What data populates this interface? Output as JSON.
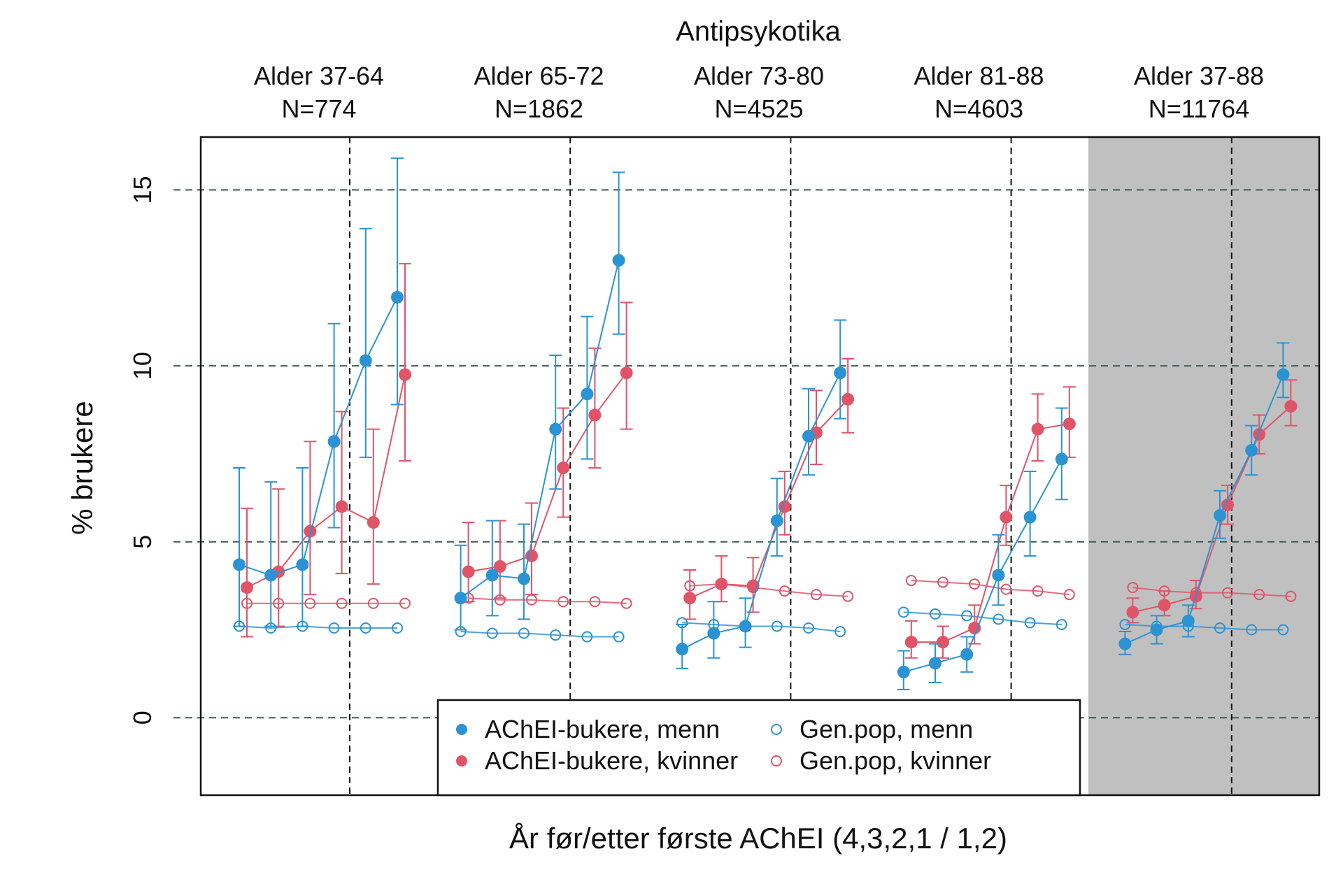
{
  "chart_data": {
    "type": "line",
    "title": "Antipsykotika",
    "xlabel": "År før/etter første AChEI (4,3,2,1 / 1,2)",
    "ylabel": "% brukere",
    "ylim": [
      -2.2,
      16.5
    ],
    "yticks": [
      0,
      5,
      10,
      15
    ],
    "ytick_labels": [
      "0",
      "5",
      "10",
      "15"
    ],
    "grid": true,
    "highlighted_panel": 4,
    "x_categories": [
      "4",
      "3",
      "2",
      "1",
      "1",
      "2"
    ],
    "legend_position": "bottom-center",
    "colors": {
      "menn": "#2b93d3",
      "kvinner": "#e05468",
      "highlight_bg": "#c0c0c0"
    },
    "legend": [
      {
        "label": "AChEI-bukere, menn",
        "series": "achei_menn"
      },
      {
        "label": "Gen.pop, menn",
        "series": "genpop_menn"
      },
      {
        "label": "AChEI-bukere, kvinner",
        "series": "achei_kvinner"
      },
      {
        "label": "Gen.pop, kvinner",
        "series": "genpop_kvinner"
      }
    ],
    "panels": [
      {
        "label": "Alder 37-64",
        "n": "N=774",
        "achei_menn": [
          4.35,
          4.05,
          4.35,
          7.85,
          10.15,
          11.95
        ],
        "achei_menn_ci": [
          [
            2.6,
            7.1
          ],
          [
            2.6,
            6.7
          ],
          [
            2.6,
            7.1
          ],
          [
            5.4,
            11.2
          ],
          [
            7.4,
            13.9
          ],
          [
            8.9,
            15.9
          ]
        ],
        "achei_kvinner": [
          3.7,
          4.15,
          5.3,
          6.0,
          5.55,
          9.75
        ],
        "achei_kvinner_ci": [
          [
            2.3,
            5.95
          ],
          [
            2.6,
            6.5
          ],
          [
            3.5,
            7.85
          ],
          [
            4.1,
            8.7
          ],
          [
            3.8,
            8.2
          ],
          [
            7.3,
            12.9
          ]
        ],
        "genpop_menn": [
          2.6,
          2.55,
          2.6,
          2.55,
          2.55,
          2.55
        ],
        "genpop_kvinner": [
          3.25,
          3.25,
          3.25,
          3.25,
          3.25,
          3.25
        ]
      },
      {
        "label": "Alder 65-72",
        "n": "N=1862",
        "achei_menn": [
          3.4,
          4.05,
          3.95,
          8.2,
          9.2,
          13.0
        ],
        "achei_menn_ci": [
          [
            2.5,
            4.9
          ],
          [
            2.9,
            5.6
          ],
          [
            2.8,
            5.5
          ],
          [
            6.5,
            10.3
          ],
          [
            7.35,
            11.4
          ],
          [
            10.9,
            15.5
          ]
        ],
        "achei_kvinner": [
          4.15,
          4.3,
          4.6,
          7.1,
          8.6,
          9.8
        ],
        "achei_kvinner_ci": [
          [
            3.3,
            5.55
          ],
          [
            3.4,
            5.6
          ],
          [
            3.5,
            6.1
          ],
          [
            5.7,
            8.8
          ],
          [
            7.1,
            10.5
          ],
          [
            8.2,
            11.8
          ]
        ],
        "genpop_menn": [
          2.45,
          2.4,
          2.4,
          2.35,
          2.3,
          2.3
        ],
        "genpop_kvinner": [
          3.4,
          3.35,
          3.35,
          3.3,
          3.3,
          3.25
        ]
      },
      {
        "label": "Alder 73-80",
        "n": "N=4525",
        "achei_menn": [
          1.95,
          2.4,
          2.6,
          5.6,
          8.0,
          9.8
        ],
        "achei_menn_ci": [
          [
            1.4,
            2.65
          ],
          [
            1.7,
            3.3
          ],
          [
            2.0,
            3.4
          ],
          [
            4.6,
            6.8
          ],
          [
            6.9,
            9.35
          ],
          [
            8.5,
            11.3
          ]
        ],
        "achei_kvinner": [
          3.4,
          3.8,
          3.75,
          6.0,
          8.1,
          9.05
        ],
        "achei_kvinner_ci": [
          [
            2.8,
            4.2
          ],
          [
            3.3,
            4.6
          ],
          [
            3.0,
            4.55
          ],
          [
            5.2,
            7.0
          ],
          [
            7.2,
            9.3
          ],
          [
            8.1,
            10.2
          ]
        ],
        "genpop_menn": [
          2.7,
          2.65,
          2.6,
          2.6,
          2.55,
          2.45
        ],
        "genpop_kvinner": [
          3.75,
          3.8,
          3.7,
          3.6,
          3.5,
          3.45
        ]
      },
      {
        "label": "Alder 81-88",
        "n": "N=4603",
        "achei_menn": [
          1.3,
          1.55,
          1.8,
          4.05,
          5.7,
          7.35
        ],
        "achei_menn_ci": [
          [
            0.8,
            1.9
          ],
          [
            1.0,
            2.1
          ],
          [
            1.3,
            2.3
          ],
          [
            3.2,
            5.2
          ],
          [
            4.6,
            7.0
          ],
          [
            6.2,
            8.8
          ]
        ],
        "achei_kvinner": [
          2.15,
          2.15,
          2.55,
          5.7,
          8.2,
          8.35
        ],
        "achei_kvinner_ci": [
          [
            1.7,
            2.75
          ],
          [
            1.7,
            2.6
          ],
          [
            2.1,
            3.2
          ],
          [
            4.9,
            6.6
          ],
          [
            7.3,
            9.2
          ],
          [
            7.4,
            9.4
          ]
        ],
        "genpop_menn": [
          3.0,
          2.95,
          2.9,
          2.8,
          2.7,
          2.65
        ],
        "genpop_kvinner": [
          3.9,
          3.85,
          3.8,
          3.65,
          3.6,
          3.5
        ]
      },
      {
        "label": "Alder 37-88",
        "n": "N=11764",
        "achei_menn": [
          2.1,
          2.5,
          2.75,
          5.75,
          7.6,
          9.75
        ],
        "achei_menn_ci": [
          [
            1.8,
            2.45
          ],
          [
            2.1,
            2.9
          ],
          [
            2.3,
            3.2
          ],
          [
            5.1,
            6.45
          ],
          [
            6.9,
            8.3
          ],
          [
            9.1,
            10.65
          ]
        ],
        "achei_kvinner": [
          3.0,
          3.2,
          3.45,
          6.05,
          8.05,
          8.85
        ],
        "achei_kvinner_ci": [
          [
            2.7,
            3.4
          ],
          [
            2.9,
            3.6
          ],
          [
            3.1,
            3.9
          ],
          [
            5.5,
            6.6
          ],
          [
            7.5,
            8.6
          ],
          [
            8.3,
            9.6
          ]
        ],
        "genpop_menn": [
          2.65,
          2.6,
          2.6,
          2.55,
          2.5,
          2.5
        ],
        "genpop_kvinner": [
          3.7,
          3.6,
          3.55,
          3.55,
          3.5,
          3.45
        ]
      }
    ]
  }
}
